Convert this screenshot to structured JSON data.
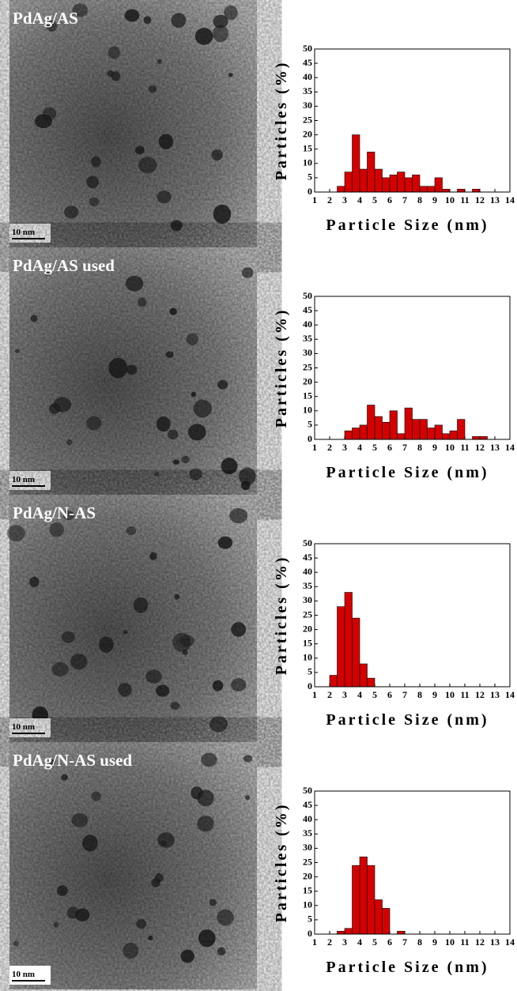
{
  "chart_data": [
    {
      "type": "histogram",
      "title": "PdAg/AS",
      "scale_bar": "10 nm",
      "x_label": "Particle Size (nm)",
      "y_label": "Particles (%)",
      "bins": [
        2.5,
        3,
        3.5,
        4,
        4.5,
        5,
        5.5,
        6,
        6.5,
        7,
        7.5,
        8,
        8.5,
        9,
        9.5,
        10,
        10.5,
        11,
        11.5,
        12
      ],
      "values": [
        2,
        7,
        20,
        8,
        14,
        8,
        5,
        6,
        7,
        5,
        6,
        2,
        2,
        5,
        1,
        0,
        1,
        0,
        1
      ],
      "color": "#d40000",
      "xlim": [
        1,
        14
      ],
      "ylim": [
        0,
        50
      ],
      "xticks": [
        1,
        2,
        3,
        4,
        5,
        6,
        7,
        8,
        9,
        10,
        11,
        12,
        13,
        14
      ],
      "yticks": [
        0,
        5,
        10,
        15,
        20,
        25,
        30,
        35,
        40,
        45,
        50
      ]
    },
    {
      "type": "histogram",
      "title": "PdAg/AS used",
      "scale_bar": "10 nm",
      "x_label": "Particle Size (nm)",
      "y_label": "Particles (%)",
      "bins": [
        3,
        3.5,
        4,
        4.5,
        5,
        5.5,
        6,
        6.5,
        7,
        7.5,
        8,
        8.5,
        9,
        9.5,
        10,
        10.5,
        11,
        11.5,
        12,
        12.5
      ],
      "values": [
        3,
        4,
        5,
        12,
        8,
        6,
        10,
        2,
        11,
        7,
        7,
        4,
        5,
        2,
        3,
        7,
        0,
        1,
        1
      ],
      "color": "#d40000",
      "xlim": [
        1,
        14
      ],
      "ylim": [
        0,
        50
      ],
      "xticks": [
        1,
        2,
        3,
        4,
        5,
        6,
        7,
        8,
        9,
        10,
        11,
        12,
        13,
        14
      ],
      "yticks": [
        0,
        5,
        10,
        15,
        20,
        25,
        30,
        35,
        40,
        45,
        50
      ]
    },
    {
      "type": "histogram",
      "title": "PdAg/N-AS",
      "scale_bar": "10 nm",
      "x_label": "Particle Size (nm)",
      "y_label": "Particles (%)",
      "bins": [
        2,
        2.5,
        3,
        3.5,
        4,
        4.5,
        5
      ],
      "values": [
        4,
        28,
        33,
        24,
        8,
        3
      ],
      "color": "#d40000",
      "xlim": [
        1,
        14
      ],
      "ylim": [
        0,
        50
      ],
      "xticks": [
        1,
        2,
        3,
        4,
        5,
        6,
        7,
        8,
        9,
        10,
        11,
        12,
        13,
        14
      ],
      "yticks": [
        0,
        5,
        10,
        15,
        20,
        25,
        30,
        35,
        40,
        45,
        50
      ]
    },
    {
      "type": "histogram",
      "title": "PdAg/N-AS used",
      "scale_bar": "10 nm",
      "x_label": "Particle Size (nm)",
      "y_label": "Particles (%)",
      "bins": [
        2.5,
        3,
        3.5,
        4,
        4.5,
        5,
        5.5,
        6,
        6.5,
        7
      ],
      "values": [
        1,
        2,
        24,
        27,
        24,
        12,
        9,
        0,
        1
      ],
      "color": "#d40000",
      "xlim": [
        1,
        14
      ],
      "ylim": [
        0,
        50
      ],
      "xticks": [
        1,
        2,
        3,
        4,
        5,
        6,
        7,
        8,
        9,
        10,
        11,
        12,
        13,
        14
      ],
      "yticks": [
        0,
        5,
        10,
        15,
        20,
        25,
        30,
        35,
        40,
        45,
        50
      ]
    }
  ]
}
